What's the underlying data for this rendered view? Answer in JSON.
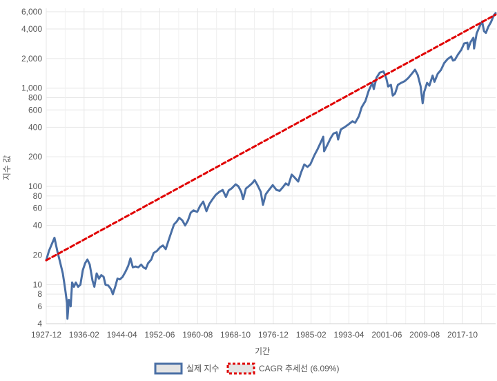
{
  "chart_data": {
    "type": "line",
    "y_scale": "log",
    "grid": true,
    "legend_position": "bottom",
    "xlabel": "기간",
    "ylabel": "지수 값",
    "x_tick_labels": [
      "1927-12",
      "1936-02",
      "1944-04",
      "1952-06",
      "1960-08",
      "1968-10",
      "1976-12",
      "1985-02",
      "1993-04",
      "2001-06",
      "2009-08",
      "2017-10"
    ],
    "y_ticks": [
      4,
      6,
      8,
      10,
      20,
      40,
      60,
      80,
      100,
      200,
      400,
      600,
      800,
      1000,
      2000,
      4000,
      6000
    ],
    "y_tick_labels": [
      "4",
      "6",
      "8",
      "10",
      "20",
      "40",
      "60",
      "80",
      "100",
      "200",
      "400",
      "600",
      "800",
      "1,000",
      "2,000",
      "4,000",
      "6,000"
    ],
    "ylim": [
      4,
      6500
    ],
    "xlim": [
      1927.92,
      2024.9
    ],
    "series": [
      {
        "name": "실제 지수",
        "color": "#4a6fa5",
        "style": "solid",
        "points": [
          [
            1927.92,
            17.7
          ],
          [
            1928.5,
            22
          ],
          [
            1929.0,
            25
          ],
          [
            1929.7,
            30
          ],
          [
            1930.3,
            22
          ],
          [
            1930.9,
            17
          ],
          [
            1931.5,
            13
          ],
          [
            1932.0,
            9
          ],
          [
            1932.4,
            6.5
          ],
          [
            1932.5,
            4.5
          ],
          [
            1932.8,
            7
          ],
          [
            1933.2,
            6
          ],
          [
            1933.5,
            10.5
          ],
          [
            1933.9,
            9.5
          ],
          [
            1934.3,
            10.5
          ],
          [
            1934.8,
            9.5
          ],
          [
            1935.3,
            10
          ],
          [
            1935.8,
            14
          ],
          [
            1936.3,
            16.5
          ],
          [
            1936.8,
            18
          ],
          [
            1937.3,
            16
          ],
          [
            1937.9,
            11
          ],
          [
            1938.3,
            9.5
          ],
          [
            1938.8,
            13
          ],
          [
            1939.3,
            11.5
          ],
          [
            1939.8,
            12.5
          ],
          [
            1940.3,
            12
          ],
          [
            1940.7,
            10
          ],
          [
            1941.3,
            9.8
          ],
          [
            1941.9,
            9
          ],
          [
            1942.3,
            8
          ],
          [
            1942.8,
            9.5
          ],
          [
            1943.3,
            11.5
          ],
          [
            1943.8,
            11.3
          ],
          [
            1944.4,
            12
          ],
          [
            1945.0,
            13.5
          ],
          [
            1945.6,
            15.5
          ],
          [
            1946.1,
            18.5
          ],
          [
            1946.6,
            15
          ],
          [
            1947.2,
            15.3
          ],
          [
            1947.8,
            15
          ],
          [
            1948.4,
            16
          ],
          [
            1948.9,
            15
          ],
          [
            1949.4,
            14.5
          ],
          [
            1949.9,
            16.5
          ],
          [
            1950.6,
            18
          ],
          [
            1951.1,
            21
          ],
          [
            1951.8,
            22
          ],
          [
            1952.5,
            24
          ],
          [
            1953.1,
            25
          ],
          [
            1953.7,
            23
          ],
          [
            1954.3,
            28
          ],
          [
            1954.9,
            34
          ],
          [
            1955.5,
            41
          ],
          [
            1956.1,
            44
          ],
          [
            1956.6,
            48
          ],
          [
            1957.3,
            45
          ],
          [
            1957.9,
            40
          ],
          [
            1958.5,
            45
          ],
          [
            1959.1,
            54
          ],
          [
            1959.7,
            57
          ],
          [
            1960.5,
            55
          ],
          [
            1961.1,
            63
          ],
          [
            1961.8,
            70
          ],
          [
            1962.5,
            56
          ],
          [
            1963.1,
            66
          ],
          [
            1963.8,
            74
          ],
          [
            1964.5,
            82
          ],
          [
            1965.3,
            88
          ],
          [
            1966.0,
            92
          ],
          [
            1966.7,
            78
          ],
          [
            1967.3,
            91
          ],
          [
            1968.0,
            96
          ],
          [
            1968.8,
            105
          ],
          [
            1969.4,
            100
          ],
          [
            1970.0,
            88
          ],
          [
            1970.4,
            74
          ],
          [
            1971.0,
            95
          ],
          [
            1971.6,
            100
          ],
          [
            1972.4,
            108
          ],
          [
            1972.9,
            116
          ],
          [
            1973.5,
            103
          ],
          [
            1974.2,
            88
          ],
          [
            1974.7,
            65
          ],
          [
            1975.3,
            83
          ],
          [
            1975.9,
            91
          ],
          [
            1976.8,
            103
          ],
          [
            1977.6,
            92
          ],
          [
            1978.3,
            90
          ],
          [
            1978.9,
            97
          ],
          [
            1979.6,
            107
          ],
          [
            1980.2,
            103
          ],
          [
            1980.9,
            132
          ],
          [
            1981.6,
            122
          ],
          [
            1982.3,
            112
          ],
          [
            1982.9,
            138
          ],
          [
            1983.6,
            167
          ],
          [
            1984.3,
            158
          ],
          [
            1984.9,
            167
          ],
          [
            1985.8,
            208
          ],
          [
            1986.5,
            240
          ],
          [
            1987.3,
            290
          ],
          [
            1987.7,
            320
          ],
          [
            1987.9,
            228
          ],
          [
            1988.5,
            260
          ],
          [
            1989.3,
            310
          ],
          [
            1989.9,
            345
          ],
          [
            1990.6,
            355
          ],
          [
            1990.9,
            300
          ],
          [
            1991.5,
            380
          ],
          [
            1992.3,
            400
          ],
          [
            1993.2,
            430
          ],
          [
            1994.0,
            460
          ],
          [
            1994.6,
            445
          ],
          [
            1995.4,
            520
          ],
          [
            1996.0,
            640
          ],
          [
            1996.8,
            740
          ],
          [
            1997.5,
            940
          ],
          [
            1998.3,
            1130
          ],
          [
            1998.6,
            980
          ],
          [
            1999.2,
            1280
          ],
          [
            1999.9,
            1440
          ],
          [
            2000.7,
            1480
          ],
          [
            2001.3,
            1260
          ],
          [
            2001.7,
            1040
          ],
          [
            2002.3,
            1080
          ],
          [
            2002.7,
            840
          ],
          [
            2003.2,
            880
          ],
          [
            2003.8,
            1080
          ],
          [
            2004.5,
            1130
          ],
          [
            2005.3,
            1180
          ],
          [
            2006.0,
            1260
          ],
          [
            2006.8,
            1400
          ],
          [
            2007.5,
            1540
          ],
          [
            2008.1,
            1360
          ],
          [
            2008.7,
            1050
          ],
          [
            2009.15,
            700
          ],
          [
            2009.5,
            920
          ],
          [
            2010.1,
            1130
          ],
          [
            2010.6,
            1060
          ],
          [
            2011.3,
            1340
          ],
          [
            2011.7,
            1160
          ],
          [
            2012.4,
            1400
          ],
          [
            2013.1,
            1530
          ],
          [
            2013.8,
            1800
          ],
          [
            2014.5,
            1970
          ],
          [
            2015.3,
            2100
          ],
          [
            2015.7,
            1910
          ],
          [
            2016.1,
            1940
          ],
          [
            2016.8,
            2210
          ],
          [
            2017.5,
            2460
          ],
          [
            2018.1,
            2850
          ],
          [
            2018.8,
            2900
          ],
          [
            2018.95,
            2500
          ],
          [
            2019.5,
            2950
          ],
          [
            2020.1,
            3260
          ],
          [
            2020.25,
            2530
          ],
          [
            2020.8,
            3600
          ],
          [
            2021.5,
            4300
          ],
          [
            2022.0,
            4770
          ],
          [
            2022.4,
            3800
          ],
          [
            2022.8,
            3650
          ],
          [
            2023.3,
            4200
          ],
          [
            2023.9,
            4700
          ],
          [
            2024.5,
            5500
          ],
          [
            2024.9,
            5800
          ]
        ]
      },
      {
        "name": "CAGR 추세선 (6.09%)",
        "color": "#e00000",
        "style": "dashed",
        "points": [
          [
            1927.92,
            17.7
          ],
          [
            2024.9,
            5600
          ]
        ]
      }
    ]
  }
}
